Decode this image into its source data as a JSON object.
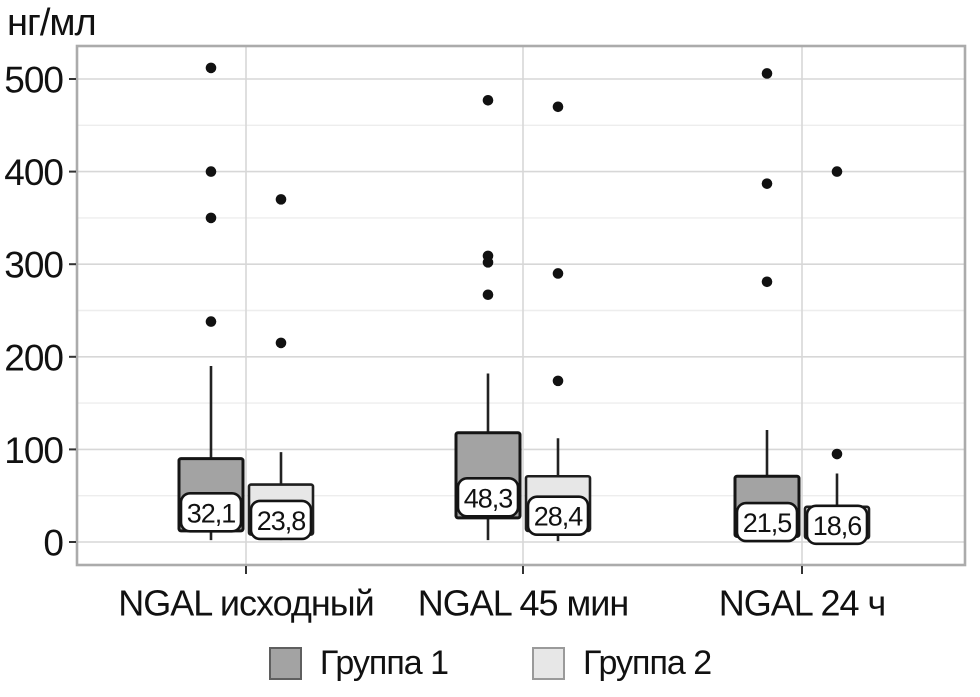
{
  "chart_data": {
    "type": "boxplot",
    "title": "",
    "ylabel": "нг/мл",
    "xlabel": "",
    "ylim": [
      0,
      540
    ],
    "yticks": [
      0,
      100,
      200,
      300,
      400,
      500
    ],
    "minor_yticks": [
      50,
      150,
      250,
      350,
      450
    ],
    "grid": "horizontal major + minor lines, vertical line at each category",
    "legend_position": "bottom-center",
    "categories": [
      "NGAL исходный",
      "NGAL 45 мин",
      "NGAL 24 ч"
    ],
    "series": [
      {
        "name": "Группа 1",
        "fill": "#a3a3a3",
        "stroke": "#151515",
        "boxes": [
          {
            "category": "NGAL исходный",
            "median": 32.1,
            "median_label": "32,1",
            "q1": 12,
            "q3": 90,
            "whisker_high": 190,
            "whisker_low": 2,
            "outliers": [
              512,
              400,
              350,
              238
            ]
          },
          {
            "category": "NGAL 45 мин",
            "median": 48.3,
            "median_label": "48,3",
            "q1": 26,
            "q3": 118,
            "whisker_high": 182,
            "whisker_low": 2,
            "outliers": [
              477,
              309,
              302,
              267
            ]
          },
          {
            "category": "NGAL 24 ч",
            "median": 21.5,
            "median_label": "21,5",
            "q1": 6,
            "q3": 71,
            "whisker_high": 121,
            "whisker_low": 1,
            "outliers": [
              506,
              387,
              281
            ]
          }
        ]
      },
      {
        "name": "Группа 2",
        "fill": "#e7e7e7",
        "stroke": "#1f1f1f",
        "boxes": [
          {
            "category": "NGAL исходный",
            "median": 23.8,
            "median_label": "23,8",
            "q1": 8,
            "q3": 62,
            "whisker_high": 97,
            "whisker_low": 2,
            "outliers": [
              370,
              215
            ]
          },
          {
            "category": "NGAL 45 мин",
            "median": 28.4,
            "median_label": "28,4",
            "q1": 12,
            "q3": 71,
            "whisker_high": 112,
            "whisker_low": 1,
            "outliers": [
              470,
              290,
              174
            ]
          },
          {
            "category": "NGAL 24 ч",
            "median": 18.6,
            "median_label": "18,6",
            "q1": 4,
            "q3": 38,
            "whisker_high": 74,
            "whisker_low": 1,
            "outliers": [
              400,
              95
            ]
          }
        ]
      }
    ],
    "colors": {
      "outlier_dot": "#111111",
      "grid_major": "#d7d7d7",
      "grid_minor": "#ededed",
      "frame": "#ababab",
      "whisker": "#222222",
      "label_box_fill": "#ffffff",
      "label_box_stroke": "#141414",
      "text": "#111111",
      "background": "#ffffff"
    }
  }
}
